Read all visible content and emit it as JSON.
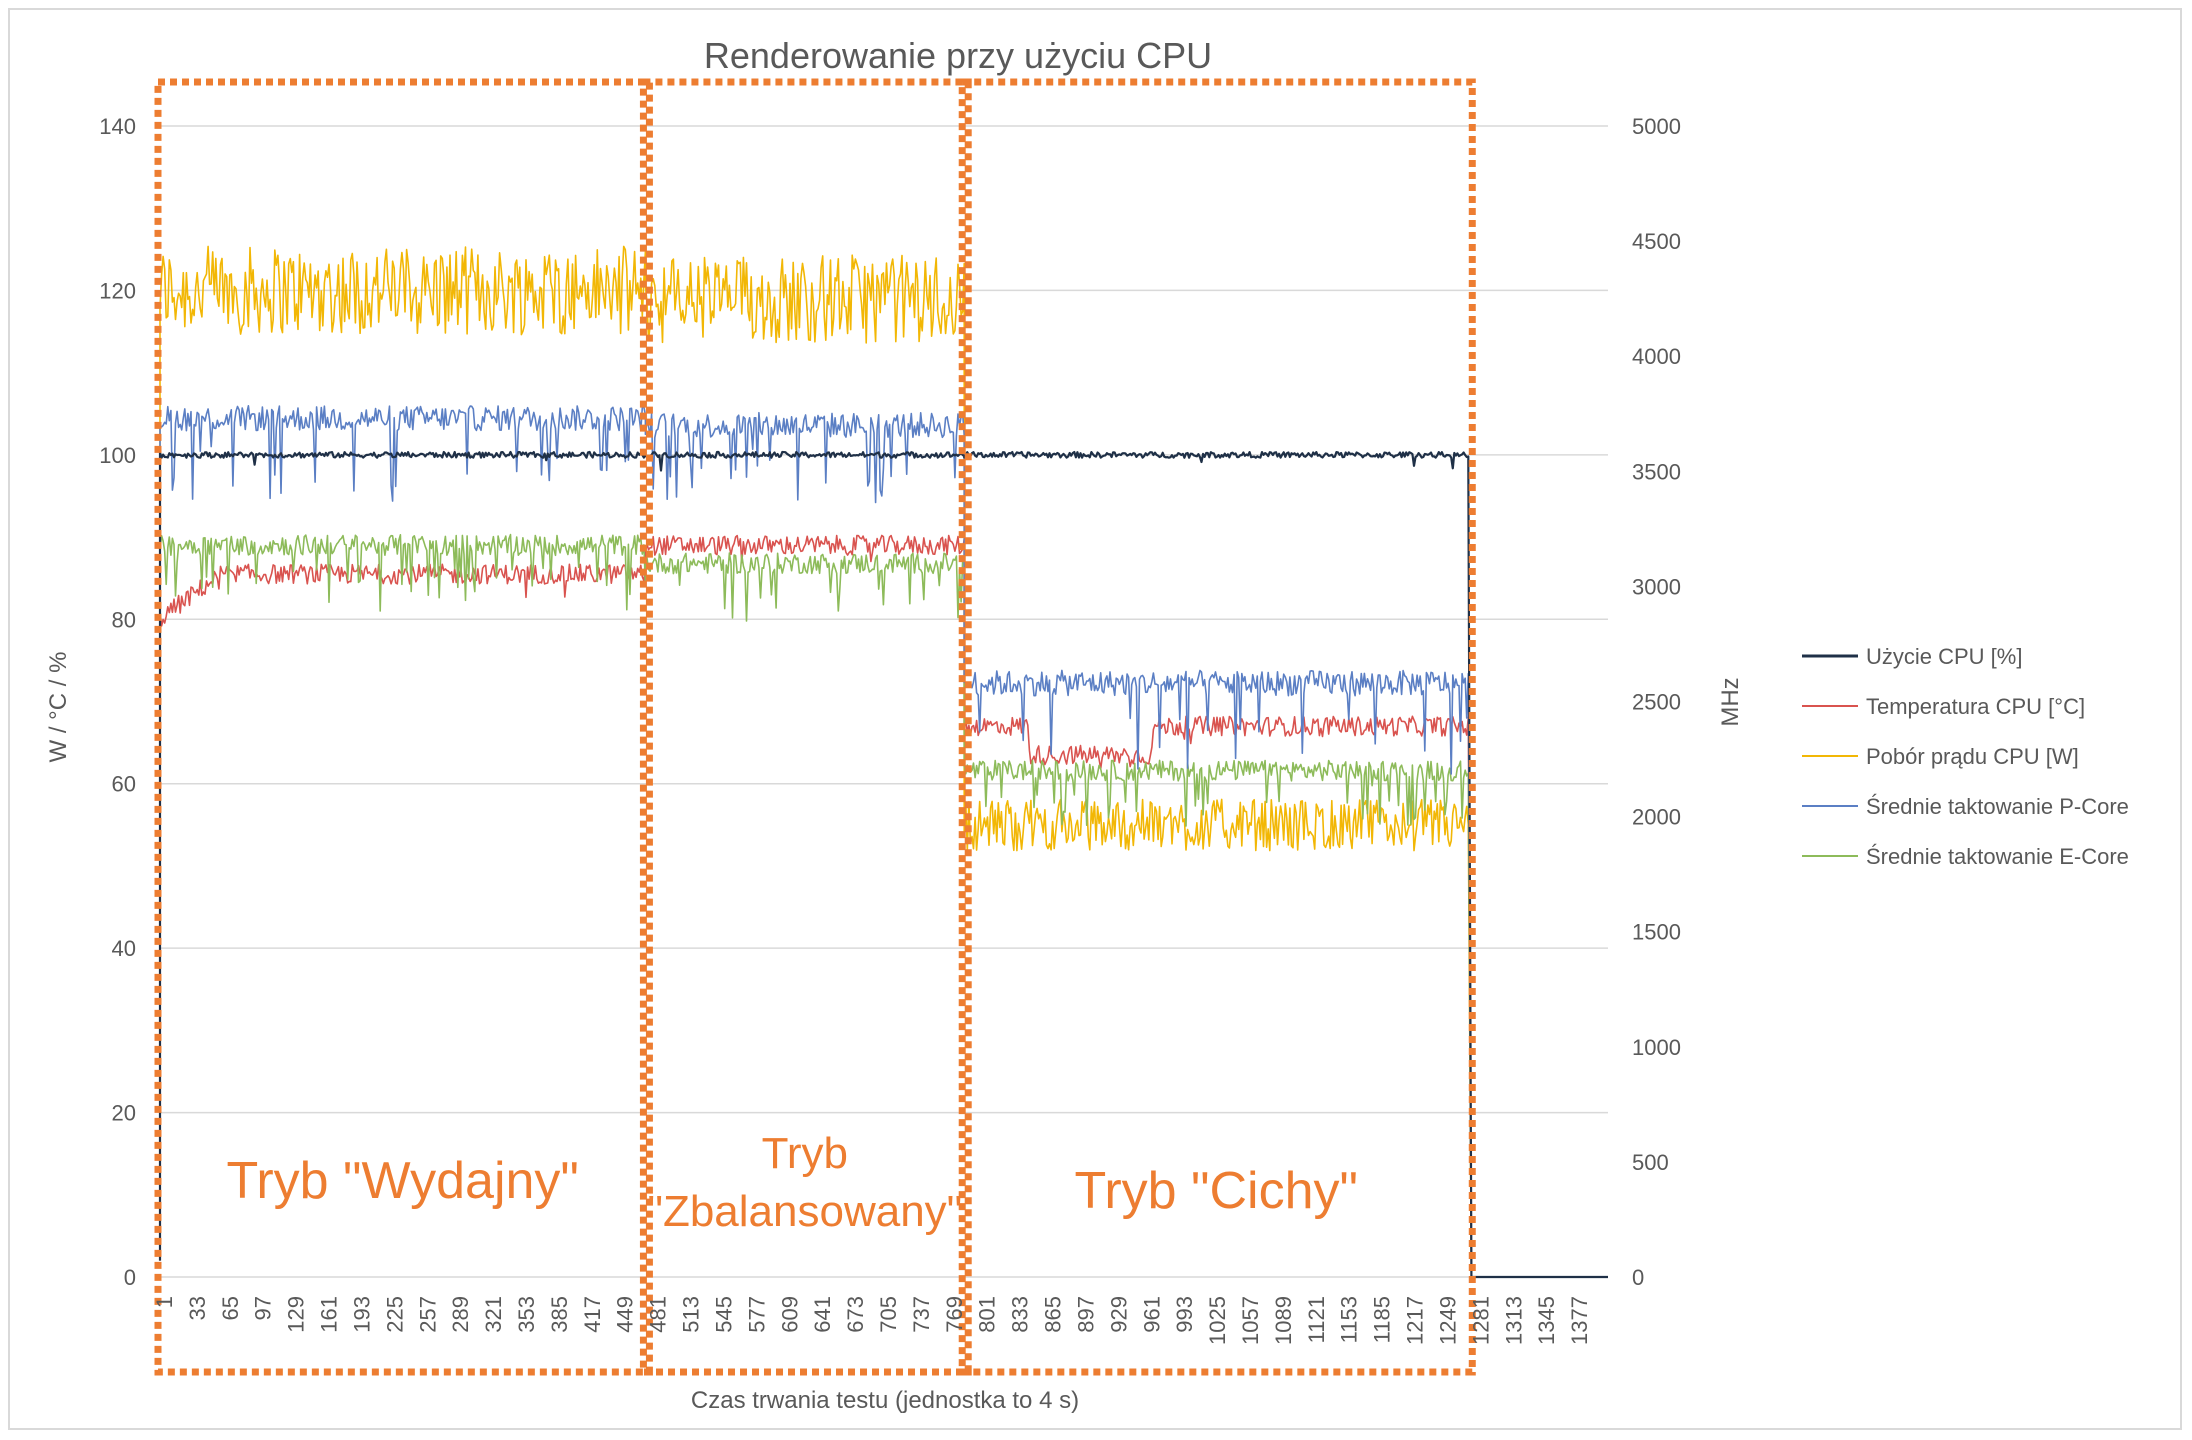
{
  "chart_data": {
    "type": "line",
    "title": "Renderowanie przy użyciu CPU",
    "xlabel": "Czas trwania testu (jednostka to 4 s)",
    "ylabel": "W / °C / %",
    "y2label": "MHz",
    "xlim": [
      1,
      1400
    ],
    "ylim": [
      0,
      140
    ],
    "y2lim": [
      0,
      5000
    ],
    "x_ticks": [
      "1",
      "33",
      "65",
      "97",
      "129",
      "161",
      "193",
      "225",
      "257",
      "289",
      "321",
      "353",
      "385",
      "417",
      "449",
      "481",
      "513",
      "545",
      "577",
      "609",
      "641",
      "673",
      "705",
      "737",
      "769",
      "801",
      "833",
      "865",
      "897",
      "929",
      "961",
      "993",
      "1025",
      "1057",
      "1089",
      "1121",
      "1153",
      "1185",
      "1217",
      "1249",
      "1281",
      "1313",
      "1345",
      "1377"
    ],
    "y_ticks": [
      "0",
      "20",
      "40",
      "60",
      "80",
      "100",
      "120",
      "140"
    ],
    "y2_ticks": [
      "0",
      "500",
      "1000",
      "1500",
      "2000",
      "2500",
      "3000",
      "3500",
      "4000",
      "4500",
      "5000"
    ],
    "grid": true,
    "legend_position": "right",
    "series": [
      {
        "name": "Użycie CPU [%]",
        "axis": "left",
        "color": "#1f3047",
        "segments": [
          [
            1,
            470,
            100
          ],
          [
            470,
            778,
            100
          ],
          [
            778,
            1265,
            100
          ]
        ]
      },
      {
        "name": "Temperatura CPU [°C]",
        "axis": "left",
        "color": "#d9534f",
        "segments": [
          [
            1,
            470,
            85.5
          ],
          [
            470,
            778,
            89
          ],
          [
            778,
            1265,
            67
          ]
        ]
      },
      {
        "name": "Pobór prądu CPU [W]",
        "axis": "left",
        "color": "#f2b705",
        "segments": [
          [
            1,
            470,
            120
          ],
          [
            470,
            778,
            119
          ],
          [
            778,
            1265,
            55
          ]
        ]
      },
      {
        "name": "Średnie taktowanie P-Core",
        "axis": "right",
        "color": "#5b7fc4",
        "segments": [
          [
            1,
            470,
            3730
          ],
          [
            470,
            778,
            3700
          ],
          [
            778,
            1265,
            2580
          ]
        ]
      },
      {
        "name": "Średnie taktowanie E-Core",
        "axis": "right",
        "color": "#8dbb5a",
        "segments": [
          [
            1,
            470,
            3180
          ],
          [
            470,
            778,
            3100
          ],
          [
            778,
            1265,
            2200
          ]
        ]
      }
    ],
    "annotations": [
      {
        "lines": [
          "Tryb \"Wydajny\""
        ]
      },
      {
        "lines": [
          "Tryb",
          "\"Zbalansowany\""
        ]
      },
      {
        "lines": [
          "Tryb \"Cichy\""
        ]
      }
    ],
    "regions": [
      [
        1,
        470
      ],
      [
        470,
        778
      ],
      [
        778,
        1265
      ]
    ]
  }
}
